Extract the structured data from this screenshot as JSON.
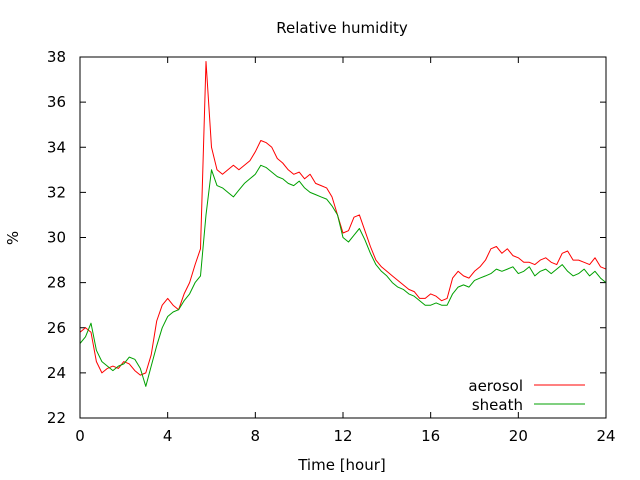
{
  "chart_data": {
    "type": "line",
    "title": "Relative humidity",
    "xlabel": "Time [hour]",
    "ylabel": "%",
    "xlim": [
      0,
      24
    ],
    "ylim": [
      22,
      38
    ],
    "xticks": [
      0,
      4,
      8,
      12,
      16,
      20,
      24
    ],
    "yticks": [
      22,
      24,
      26,
      28,
      30,
      32,
      34,
      36,
      38
    ],
    "grid": false,
    "legend_position": "bottom-right",
    "series": [
      {
        "name": "aerosol",
        "color": "#ff0000",
        "x": [
          0,
          0.25,
          0.5,
          0.75,
          1,
          1.25,
          1.5,
          1.75,
          2,
          2.25,
          2.5,
          2.75,
          3,
          3.25,
          3.5,
          3.75,
          4,
          4.25,
          4.5,
          4.75,
          5,
          5.25,
          5.5,
          5.75,
          6,
          6.25,
          6.5,
          6.75,
          7,
          7.25,
          7.5,
          7.75,
          8,
          8.25,
          8.5,
          8.75,
          9,
          9.25,
          9.5,
          9.75,
          10,
          10.25,
          10.5,
          10.75,
          11,
          11.25,
          11.5,
          11.75,
          12,
          12.25,
          12.5,
          12.75,
          13,
          13.25,
          13.5,
          13.75,
          14,
          14.25,
          14.5,
          14.75,
          15,
          15.25,
          15.5,
          15.75,
          16,
          16.25,
          16.5,
          16.75,
          17,
          17.25,
          17.5,
          17.75,
          18,
          18.25,
          18.5,
          18.75,
          19,
          19.25,
          19.5,
          19.75,
          20,
          20.25,
          20.5,
          20.75,
          21,
          21.25,
          21.5,
          21.75,
          22,
          22.25,
          22.5,
          22.75,
          23,
          23.25,
          23.5,
          23.75,
          24
        ],
        "y": [
          25.8,
          26,
          25.8,
          24.5,
          24,
          24.2,
          24.3,
          24.2,
          24.5,
          24.4,
          24.1,
          23.9,
          24,
          24.8,
          26.3,
          27,
          27.3,
          27,
          26.8,
          27.5,
          28,
          28.8,
          29.5,
          37.8,
          34,
          33,
          32.8,
          33,
          33.2,
          33,
          33.2,
          33.4,
          33.8,
          34.3,
          34.2,
          34,
          33.5,
          33.3,
          33,
          32.8,
          32.9,
          32.6,
          32.8,
          32.4,
          32.3,
          32.2,
          31.8,
          31,
          30.2,
          30.3,
          30.9,
          31,
          30.3,
          29.6,
          29,
          28.7,
          28.5,
          28.3,
          28.1,
          27.9,
          27.7,
          27.6,
          27.3,
          27.3,
          27.5,
          27.4,
          27.2,
          27.3,
          28.2,
          28.5,
          28.3,
          28.2,
          28.5,
          28.7,
          29,
          29.5,
          29.6,
          29.3,
          29.5,
          29.2,
          29.1,
          28.9,
          28.9,
          28.8,
          29,
          29.1,
          28.9,
          28.8,
          29.3,
          29.4,
          29,
          29,
          28.9,
          28.8,
          29.1,
          28.7,
          28.6
        ]
      },
      {
        "name": "sheath",
        "color": "#00a000",
        "x": [
          0,
          0.25,
          0.5,
          0.75,
          1,
          1.25,
          1.5,
          1.75,
          2,
          2.25,
          2.5,
          2.75,
          3,
          3.25,
          3.5,
          3.75,
          4,
          4.25,
          4.5,
          4.75,
          5,
          5.25,
          5.5,
          5.75,
          6,
          6.25,
          6.5,
          6.75,
          7,
          7.25,
          7.5,
          7.75,
          8,
          8.25,
          8.5,
          8.75,
          9,
          9.25,
          9.5,
          9.75,
          10,
          10.25,
          10.5,
          10.75,
          11,
          11.25,
          11.5,
          11.75,
          12,
          12.25,
          12.5,
          12.75,
          13,
          13.25,
          13.5,
          13.75,
          14,
          14.25,
          14.5,
          14.75,
          15,
          15.25,
          15.5,
          15.75,
          16,
          16.25,
          16.5,
          16.75,
          17,
          17.25,
          17.5,
          17.75,
          18,
          18.25,
          18.5,
          18.75,
          19,
          19.25,
          19.5,
          19.75,
          20,
          20.25,
          20.5,
          20.75,
          21,
          21.25,
          21.5,
          21.75,
          22,
          22.25,
          22.5,
          22.75,
          23,
          23.25,
          23.5,
          23.75,
          24
        ],
        "y": [
          25.3,
          25.6,
          26.2,
          25,
          24.5,
          24.3,
          24.1,
          24.3,
          24.4,
          24.7,
          24.6,
          24.2,
          23.4,
          24.3,
          25.2,
          26,
          26.5,
          26.7,
          26.8,
          27.2,
          27.5,
          28,
          28.3,
          31,
          33,
          32.3,
          32.2,
          32,
          31.8,
          32.1,
          32.4,
          32.6,
          32.8,
          33.2,
          33.1,
          32.9,
          32.7,
          32.6,
          32.4,
          32.3,
          32.5,
          32.2,
          32,
          31.9,
          31.8,
          31.7,
          31.4,
          31,
          30,
          29.8,
          30.1,
          30.4,
          29.9,
          29.3,
          28.8,
          28.5,
          28.3,
          28,
          27.8,
          27.7,
          27.5,
          27.4,
          27.2,
          27,
          27,
          27.1,
          27,
          27,
          27.5,
          27.8,
          27.9,
          27.8,
          28.1,
          28.2,
          28.3,
          28.4,
          28.6,
          28.5,
          28.6,
          28.7,
          28.4,
          28.5,
          28.7,
          28.3,
          28.5,
          28.6,
          28.4,
          28.6,
          28.8,
          28.5,
          28.3,
          28.4,
          28.6,
          28.3,
          28.5,
          28.2,
          28
        ]
      }
    ]
  }
}
